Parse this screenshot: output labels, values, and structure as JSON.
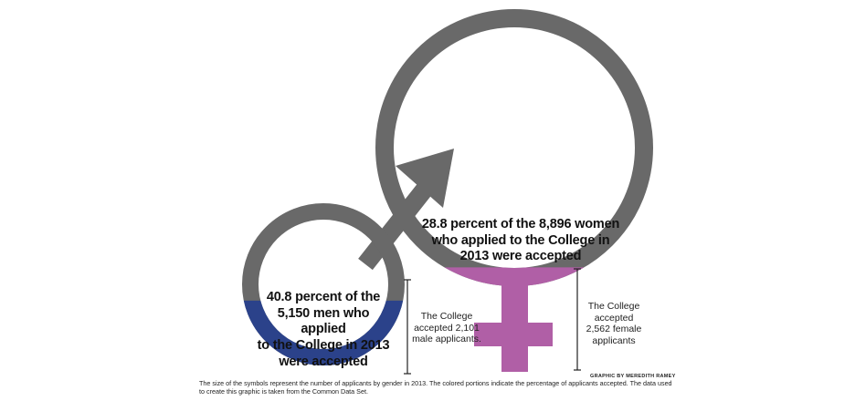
{
  "colors": {
    "symbol_gray": "#696969",
    "male_fill": "#2b428a",
    "female_fill": "#b05fa6"
  },
  "male": {
    "applicants": 5150,
    "accepted": 2101,
    "percent_accepted": 40.8,
    "circle_text_lines": [
      "40.8 percent of the",
      "5,150 men who applied",
      "to the College in 2013",
      "were accepted"
    ],
    "side_text_lines": [
      "The College",
      "accepted 2,101",
      "male applicants."
    ]
  },
  "female": {
    "applicants": 8896,
    "accepted": 2562,
    "percent_accepted": 28.8,
    "circle_text_lines": [
      "28.8 percent of the 8,896 women",
      "who applied to the College in",
      "2013 were accepted"
    ],
    "side_text_lines": [
      "The College",
      "accepted",
      "2,562 female",
      "applicants"
    ]
  },
  "credit": "GRAPHIC BY MEREDITH RAMEY",
  "footnote": "The size of the symbols represent the number of applicants by gender in 2013. The colored portions indicate the percentage of applicants accepted. The data used to create this graphic is taken from the Common Data Set."
}
